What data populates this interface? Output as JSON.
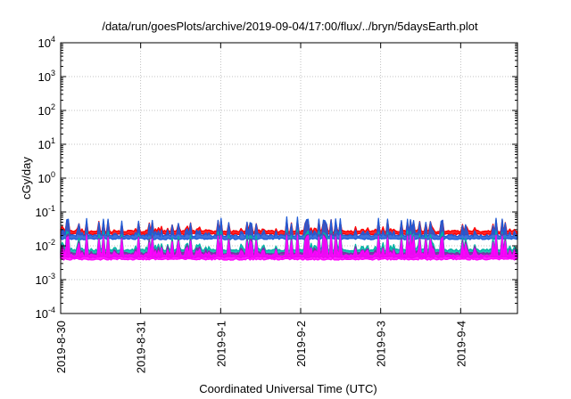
{
  "chart_data": {
    "type": "line",
    "title": "/data/run/goesPlots/archive/2019-09-04/17:00/flux/../bryn/5daysEarth.plot",
    "xlabel": "Coordinated Universal Time (UTC)",
    "ylabel": "cGy/day",
    "y_scale": "log",
    "ylim_exponents": [
      -4,
      4
    ],
    "xlim_days": [
      0,
      5.71
    ],
    "grid": true,
    "x_ticks": [
      {
        "label": "2019-8-30",
        "day": 0
      },
      {
        "label": "2019-8-31",
        "day": 1
      },
      {
        "label": "2019-9-1",
        "day": 2
      },
      {
        "label": "2019-9-2",
        "day": 3
      },
      {
        "label": "2019-9-3",
        "day": 4
      },
      {
        "label": "2019-9-4",
        "day": 5
      }
    ],
    "y_ticks": [
      {
        "base": "10",
        "exp": "-4",
        "value": -4
      },
      {
        "base": "10",
        "exp": "-3",
        "value": -3
      },
      {
        "base": "10",
        "exp": "-2",
        "value": -2
      },
      {
        "base": "10",
        "exp": "-1",
        "value": -1
      },
      {
        "base": "10",
        "exp": "0",
        "value": 0
      },
      {
        "base": "10",
        "exp": "1",
        "value": 1
      },
      {
        "base": "10",
        "exp": "2",
        "value": 2
      },
      {
        "base": "10",
        "exp": "3",
        "value": 3
      },
      {
        "base": "10",
        "exp": "4",
        "value": 4
      }
    ],
    "series": [
      {
        "color": "#ff0000",
        "baseline": 0.027,
        "floor": 0.022,
        "spike_max": 0.06
      },
      {
        "color": "#1e5bd6",
        "baseline": 0.02,
        "floor": 0.016,
        "spike_max": 0.07
      },
      {
        "color": "#00b3a4",
        "baseline": 0.0075,
        "floor": 0.0058,
        "spike_max": 0.03
      },
      {
        "color": "#7b2fa8",
        "baseline": 0.006,
        "floor": 0.0046,
        "spike_max": 0.025
      },
      {
        "color": "#ff00ff",
        "baseline": 0.0052,
        "floor": 0.004,
        "spike_max": 0.022
      }
    ]
  }
}
